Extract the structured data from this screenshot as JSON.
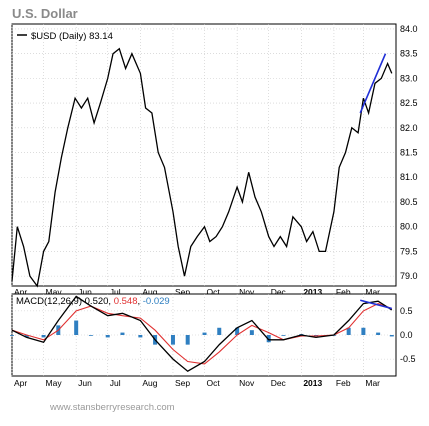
{
  "header": {
    "title": "U.S. Dollar"
  },
  "footer": {
    "credit": "www.stansberryresearch.com"
  },
  "colors": {
    "price": "#000000",
    "trendline": "#1f2ed6",
    "macd": "#000000",
    "signal": "#e03030",
    "histogram": "#2f7fc1",
    "grid": "#c8c8c8",
    "title": "#8a8a8a",
    "credit": "#9a9a9a"
  },
  "chart_data": [
    {
      "type": "line",
      "legend": {
        "label": "$USD (Daily)",
        "last_value": "83.14",
        "placement": "top-left"
      },
      "x_ticks": [
        "Apr",
        "May",
        "Jun",
        "Jul",
        "Aug",
        "Sep",
        "Oct",
        "Nov",
        "Dec",
        "2013",
        "Feb",
        "Mar"
      ],
      "y_ticks": [
        "84.0",
        "83.5",
        "83.0",
        "82.5",
        "82.0",
        "81.5",
        "81.0",
        "80.5",
        "80.0",
        "79.5",
        "79.0"
      ],
      "ylim": [
        78.8,
        84.1
      ],
      "grid": true,
      "series": [
        {
          "name": "$USD (Daily)",
          "x": [
            "2012-04-01",
            "2012-04-06",
            "2012-04-12",
            "2012-04-18",
            "2012-04-25",
            "2012-05-01",
            "2012-05-06",
            "2012-05-12",
            "2012-05-18",
            "2012-05-24",
            "2012-05-31",
            "2012-06-06",
            "2012-06-12",
            "2012-06-18",
            "2012-06-24",
            "2012-07-01",
            "2012-07-06",
            "2012-07-12",
            "2012-07-18",
            "2012-07-24",
            "2012-08-01",
            "2012-08-06",
            "2012-08-12",
            "2012-08-18",
            "2012-08-24",
            "2012-09-01",
            "2012-09-06",
            "2012-09-12",
            "2012-09-18",
            "2012-09-24",
            "2012-10-01",
            "2012-10-06",
            "2012-10-12",
            "2012-10-18",
            "2012-10-24",
            "2012-11-01",
            "2012-11-06",
            "2012-11-12",
            "2012-11-18",
            "2012-11-24",
            "2012-12-01",
            "2012-12-06",
            "2012-12-12",
            "2012-12-18",
            "2012-12-24",
            "2013-01-01",
            "2013-01-06",
            "2013-01-12",
            "2013-01-18",
            "2013-01-24",
            "2013-02-01",
            "2013-02-06",
            "2013-02-12",
            "2013-02-18",
            "2013-02-24",
            "2013-03-01",
            "2013-03-06",
            "2013-03-12",
            "2013-03-18",
            "2013-03-24",
            "2013-03-28"
          ],
          "values": [
            78.9,
            80.0,
            79.6,
            79.0,
            78.8,
            79.5,
            79.7,
            80.7,
            81.4,
            82.0,
            82.6,
            82.4,
            82.6,
            82.1,
            82.5,
            83.0,
            83.5,
            83.6,
            83.2,
            83.5,
            83.1,
            82.4,
            82.3,
            81.5,
            81.2,
            80.3,
            79.6,
            79.0,
            79.6,
            79.8,
            80.0,
            79.7,
            79.8,
            80.0,
            80.3,
            80.8,
            80.5,
            81.1,
            80.6,
            80.3,
            79.8,
            79.6,
            79.8,
            79.6,
            80.2,
            80.0,
            79.7,
            79.9,
            79.5,
            79.5,
            80.3,
            81.2,
            81.5,
            82.0,
            81.9,
            82.6,
            82.3,
            82.9,
            83.0,
            83.3,
            83.1
          ]
        }
      ],
      "annotations": [
        {
          "type": "trendline",
          "from": {
            "x": "2013-02-26",
            "y": 82.3
          },
          "to": {
            "x": "2013-03-22",
            "y": 83.5
          }
        }
      ]
    },
    {
      "type": "line",
      "legend": {
        "label": "MACD(12,26,9)",
        "macd": "0.520",
        "signal": "0.548",
        "histogram": "-0.029",
        "placement": "top-left"
      },
      "x_ticks": [
        "Apr",
        "May",
        "Jun",
        "Jul",
        "Aug",
        "Sep",
        "Oct",
        "Nov",
        "Dec",
        "2013",
        "Feb",
        "Mar"
      ],
      "y_ticks": [
        "0.5",
        "0.0",
        "-0.5"
      ],
      "ylim": [
        -0.85,
        0.85
      ],
      "grid": true,
      "x": [
        "2012-04-01",
        "2012-04-15",
        "2012-05-01",
        "2012-05-15",
        "2012-06-01",
        "2012-06-15",
        "2012-07-01",
        "2012-07-15",
        "2012-08-01",
        "2012-08-15",
        "2012-09-01",
        "2012-09-15",
        "2012-10-01",
        "2012-10-15",
        "2012-11-01",
        "2012-11-15",
        "2012-12-01",
        "2012-12-15",
        "2013-01-01",
        "2013-01-15",
        "2013-02-01",
        "2013-02-15",
        "2013-03-01",
        "2013-03-15",
        "2013-03-28"
      ],
      "series": [
        {
          "name": "MACD",
          "values": [
            0.1,
            -0.05,
            -0.15,
            0.3,
            0.8,
            0.6,
            0.4,
            0.45,
            0.3,
            -0.1,
            -0.5,
            -0.75,
            -0.55,
            -0.2,
            0.15,
            0.3,
            -0.1,
            -0.1,
            0.0,
            -0.05,
            0.0,
            0.3,
            0.65,
            0.7,
            0.52
          ]
        },
        {
          "name": "Signal",
          "values": [
            0.1,
            0.0,
            -0.1,
            0.1,
            0.5,
            0.6,
            0.45,
            0.4,
            0.35,
            0.1,
            -0.3,
            -0.55,
            -0.6,
            -0.35,
            0.0,
            0.2,
            0.05,
            -0.1,
            -0.02,
            -0.02,
            0.0,
            0.15,
            0.5,
            0.65,
            0.55
          ]
        },
        {
          "name": "Histogram",
          "type": "bar",
          "values": [
            0.0,
            -0.05,
            -0.05,
            0.2,
            0.3,
            0.0,
            -0.05,
            0.05,
            -0.05,
            -0.2,
            -0.2,
            -0.2,
            0.05,
            0.15,
            0.15,
            0.1,
            -0.15,
            0.0,
            0.02,
            -0.03,
            0.0,
            0.15,
            0.15,
            0.05,
            -0.03
          ]
        }
      ],
      "annotations": [
        {
          "type": "trendline",
          "from": {
            "x": "2013-02-26",
            "y": 0.72
          },
          "to": {
            "x": "2013-03-28",
            "y": 0.55
          }
        }
      ]
    }
  ]
}
